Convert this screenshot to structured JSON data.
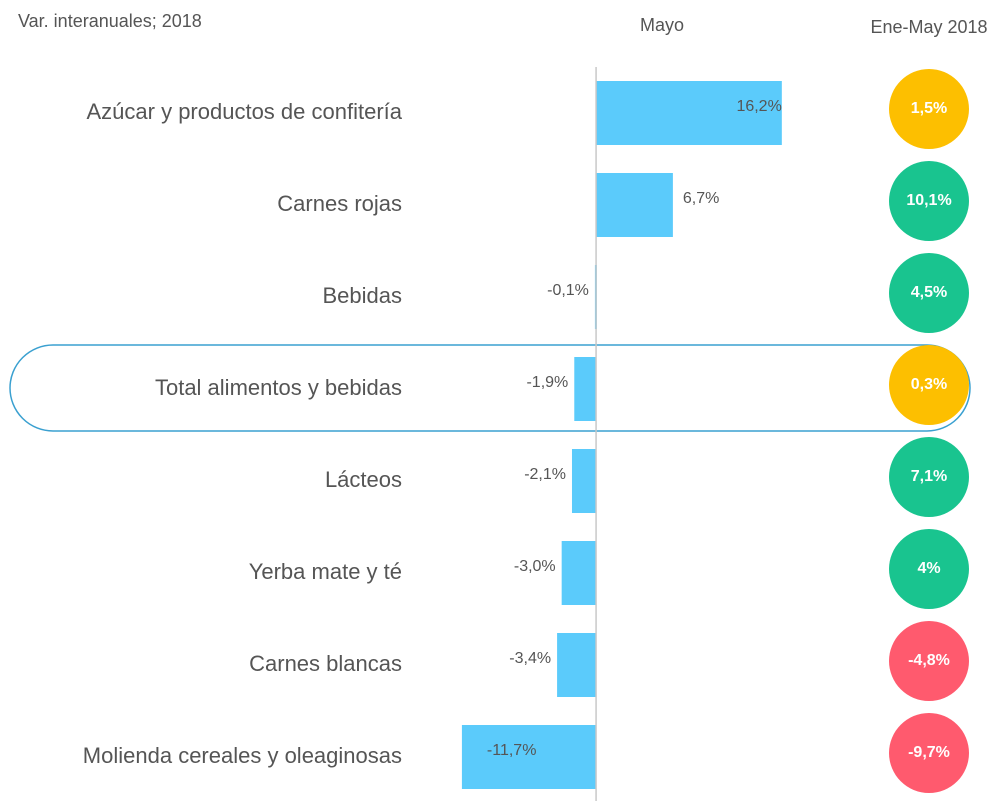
{
  "chart_data": {
    "type": "bar",
    "title": "Var. interanuales; 2018",
    "categories": [
      "Azúcar y productos de confitería",
      "Carnes rojas",
      "Bebidas",
      "Total alimentos y bebidas",
      "Lácteos",
      "Yerba mate y té",
      "Carnes blancas",
      "Molienda cereales y oleaginosas"
    ],
    "series": [
      {
        "name": "Mayo",
        "color": "#5bcbfb",
        "values": [
          16.2,
          6.7,
          -0.1,
          -1.9,
          -2.1,
          -3.0,
          -3.4,
          -11.7
        ],
        "value_labels": [
          "16,2%",
          "6,7%",
          "-0,1%",
          "-1,9%",
          "-2,1%",
          "-3,0%",
          "-3,4%",
          "-11,7%"
        ]
      },
      {
        "name": "Ene-May 2018",
        "colors": [
          "#fdbf00",
          "#19c48f",
          "#19c48f",
          "#fdbf00",
          "#19c48f",
          "#19c48f",
          "#ff5a6e",
          "#ff5a6e"
        ],
        "values": [
          1.5,
          10.1,
          4.5,
          0.3,
          7.1,
          4,
          -4.8,
          -9.7
        ],
        "value_labels": [
          "1,5%",
          "10,1%",
          "4,5%",
          "0,3%",
          "7,1%",
          "4%",
          "-4,8%",
          "-9,7%"
        ]
      }
    ],
    "xlim": [
      -13,
      17
    ],
    "highlight": 3
  }
}
